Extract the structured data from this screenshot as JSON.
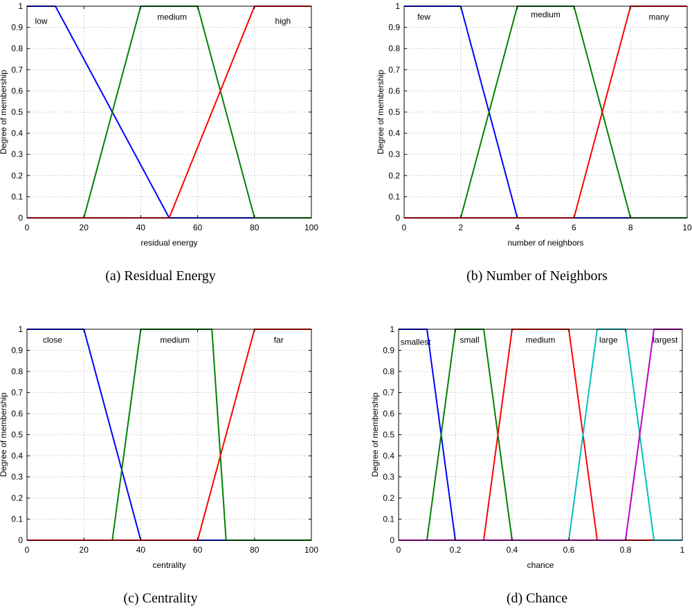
{
  "chart_data": [
    {
      "type": "line",
      "id": "a",
      "caption": "(a)  Residual Energy",
      "xlabel": "residual energy",
      "ylabel": "Degree of membership",
      "xlim": [
        0,
        100
      ],
      "ylim": [
        0,
        1
      ],
      "xticks": [
        0,
        20,
        40,
        60,
        80,
        100
      ],
      "xtick_labels": [
        "0",
        "20",
        "40",
        "60",
        "80",
        "100"
      ],
      "yticks": [
        0,
        0.1,
        0.2,
        0.3,
        0.4,
        0.5,
        0.6,
        0.7,
        0.8,
        0.9,
        1
      ],
      "ytick_labels": [
        "0",
        "0.1",
        "0.2",
        "0.3",
        "0.4",
        "0.5",
        "0.6",
        "0.7",
        "0.8",
        "0.9",
        "1"
      ],
      "grid": true,
      "series": [
        {
          "name": "low",
          "color": "#0000ff",
          "x": [
            0,
            10,
            50,
            100
          ],
          "y": [
            1,
            1,
            0,
            0
          ],
          "label_x": 5,
          "label_y": 0.93,
          "label_anchor": "middle"
        },
        {
          "name": "medium",
          "color": "#008000",
          "x": [
            0,
            20,
            40,
            60,
            80,
            100
          ],
          "y": [
            0,
            0,
            1,
            1,
            0,
            0
          ],
          "label_x": 51,
          "label_y": 0.95,
          "label_anchor": "middle"
        },
        {
          "name": "high",
          "color": "#ff0000",
          "x": [
            0,
            50,
            80,
            100
          ],
          "y": [
            0,
            0,
            1,
            1
          ],
          "label_x": 90,
          "label_y": 0.93,
          "label_anchor": "middle"
        }
      ]
    },
    {
      "type": "line",
      "id": "b",
      "caption": "(b)  Number of Neighbors",
      "xlabel": "number of neighbors",
      "ylabel": "Degree of membership",
      "xlim": [
        0,
        10
      ],
      "ylim": [
        0,
        1
      ],
      "xticks": [
        0,
        2,
        4,
        6,
        8,
        10
      ],
      "xtick_labels": [
        "0",
        "2",
        "4",
        "6",
        "8",
        "10"
      ],
      "yticks": [
        0,
        0.1,
        0.2,
        0.3,
        0.4,
        0.5,
        0.6,
        0.7,
        0.8,
        0.9,
        1
      ],
      "ytick_labels": [
        "0",
        "0.1",
        "0.2",
        "0.3",
        "0.4",
        "0.5",
        "0.6",
        "0.7",
        "0.8",
        "0.9",
        "1"
      ],
      "grid": true,
      "series": [
        {
          "name": "few",
          "color": "#0000ff",
          "x": [
            0,
            2,
            4,
            10
          ],
          "y": [
            1,
            1,
            0,
            0
          ],
          "label_x": 0.7,
          "label_y": 0.95,
          "label_anchor": "middle"
        },
        {
          "name": "medium",
          "color": "#008000",
          "x": [
            0,
            2,
            4,
            6,
            8,
            10
          ],
          "y": [
            0,
            0,
            1,
            1,
            0,
            0
          ],
          "label_x": 5,
          "label_y": 0.96,
          "label_anchor": "middle"
        },
        {
          "name": "many",
          "color": "#ff0000",
          "x": [
            0,
            6,
            8,
            10
          ],
          "y": [
            0,
            0,
            1,
            1
          ],
          "label_x": 9,
          "label_y": 0.95,
          "label_anchor": "middle"
        }
      ]
    },
    {
      "type": "line",
      "id": "c",
      "caption": "(c)  Centrality",
      "xlabel": "centrality",
      "ylabel": "Degree of membership",
      "xlim": [
        0,
        100
      ],
      "ylim": [
        0,
        1
      ],
      "xticks": [
        0,
        20,
        40,
        60,
        80,
        100
      ],
      "xtick_labels": [
        "0",
        "20",
        "40",
        "60",
        "80",
        "100"
      ],
      "yticks": [
        0,
        0.1,
        0.2,
        0.3,
        0.4,
        0.5,
        0.6,
        0.7,
        0.8,
        0.9,
        1
      ],
      "ytick_labels": [
        "0",
        "0.1",
        "0.2",
        "0.3",
        "0.4",
        "0.5",
        "0.6",
        "0.7",
        "0.8",
        "0.9",
        "1"
      ],
      "grid": true,
      "series": [
        {
          "name": "close",
          "color": "#0000ff",
          "x": [
            0,
            20,
            40,
            100
          ],
          "y": [
            1,
            1,
            0,
            0
          ],
          "label_x": 9,
          "label_y": 0.95,
          "label_anchor": "middle"
        },
        {
          "name": "medium",
          "color": "#008000",
          "x": [
            0,
            30,
            40,
            65,
            70,
            100
          ],
          "y": [
            0,
            0,
            1,
            1,
            0,
            0
          ],
          "label_x": 52,
          "label_y": 0.95,
          "label_anchor": "middle"
        },
        {
          "name": "far",
          "color": "#ff0000",
          "x": [
            0,
            60,
            80,
            100
          ],
          "y": [
            0,
            0,
            1,
            1
          ],
          "label_x": 88.5,
          "label_y": 0.95,
          "label_anchor": "middle"
        }
      ]
    },
    {
      "type": "line",
      "id": "d",
      "caption": "(d)  Chance",
      "xlabel": "chance",
      "ylabel": "Degree of membership",
      "xlim": [
        0,
        1
      ],
      "ylim": [
        0,
        1
      ],
      "xticks": [
        0,
        0.2,
        0.4,
        0.6,
        0.8,
        1
      ],
      "xtick_labels": [
        "0",
        "0.2",
        "0.4",
        "0.6",
        "0.8",
        "1"
      ],
      "yticks": [
        0,
        0.1,
        0.2,
        0.3,
        0.4,
        0.5,
        0.6,
        0.7,
        0.8,
        0.9,
        1
      ],
      "ytick_labels": [
        "0",
        "0.1",
        "0.2",
        "0.3",
        "0.4",
        "0.5",
        "0.6",
        "0.7",
        "0.8",
        "0.9",
        "1"
      ],
      "grid": true,
      "series": [
        {
          "name": "smallest",
          "color": "#0000ff",
          "x": [
            0,
            0.1,
            0.2,
            1
          ],
          "y": [
            1,
            1,
            0,
            0
          ],
          "label_x": 0.06,
          "label_y": 0.94,
          "label_anchor": "middle"
        },
        {
          "name": "small",
          "color": "#008000",
          "x": [
            0,
            0.1,
            0.2,
            0.3,
            0.4,
            1
          ],
          "y": [
            0,
            0,
            1,
            1,
            0,
            0
          ],
          "label_x": 0.25,
          "label_y": 0.95,
          "label_anchor": "middle"
        },
        {
          "name": "medium",
          "color": "#ff0000",
          "x": [
            0,
            0.3,
            0.4,
            0.6,
            0.7,
            1
          ],
          "y": [
            0,
            0,
            1,
            1,
            0,
            0
          ],
          "label_x": 0.5,
          "label_y": 0.95,
          "label_anchor": "middle"
        },
        {
          "name": "large",
          "color": "#00bfbf",
          "x": [
            0,
            0.6,
            0.7,
            0.8,
            0.9,
            1
          ],
          "y": [
            0,
            0,
            1,
            1,
            0,
            0
          ],
          "label_x": 0.74,
          "label_y": 0.95,
          "label_anchor": "middle"
        },
        {
          "name": "largest",
          "color": "#bf00bf",
          "x": [
            0,
            0.8,
            0.9,
            1
          ],
          "y": [
            0,
            0,
            1,
            1
          ],
          "label_x": 0.94,
          "label_y": 0.95,
          "label_anchor": "middle"
        }
      ]
    }
  ]
}
